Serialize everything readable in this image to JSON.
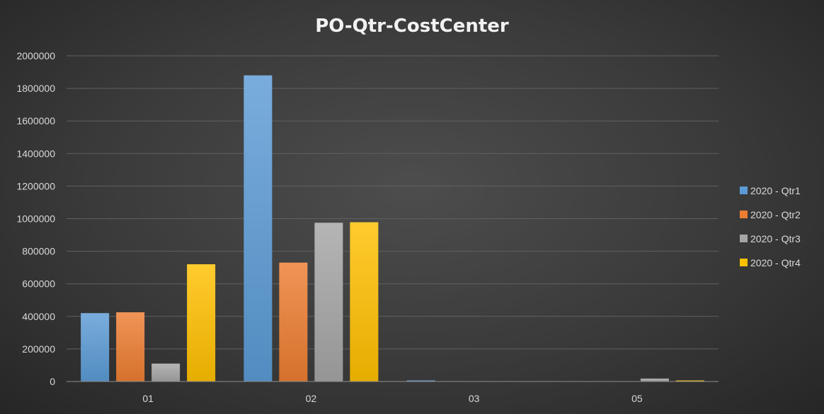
{
  "chart_data": {
    "type": "bar",
    "title": "PO-Qtr-CostCenter",
    "xlabel": "",
    "ylabel": "",
    "categories": [
      "01",
      "02",
      "03",
      "05"
    ],
    "ylim": [
      0,
      2000000
    ],
    "yticks": [
      0,
      200000,
      400000,
      600000,
      800000,
      1000000,
      1200000,
      1400000,
      1600000,
      1800000,
      2000000
    ],
    "grid": true,
    "legend_position": "right",
    "series": [
      {
        "name": "2020 - Qtr1",
        "color": "#5b9bd5",
        "values": [
          420000,
          1880000,
          3000,
          0
        ]
      },
      {
        "name": "2020 - Qtr2",
        "color": "#ed7d31",
        "values": [
          425000,
          730000,
          0,
          0
        ]
      },
      {
        "name": "2020 - Qtr3",
        "color": "#a5a5a5",
        "values": [
          110000,
          975000,
          0,
          18000
        ]
      },
      {
        "name": "2020 - Qtr4",
        "color": "#ffc000",
        "values": [
          720000,
          978000,
          0,
          4000
        ]
      }
    ]
  }
}
